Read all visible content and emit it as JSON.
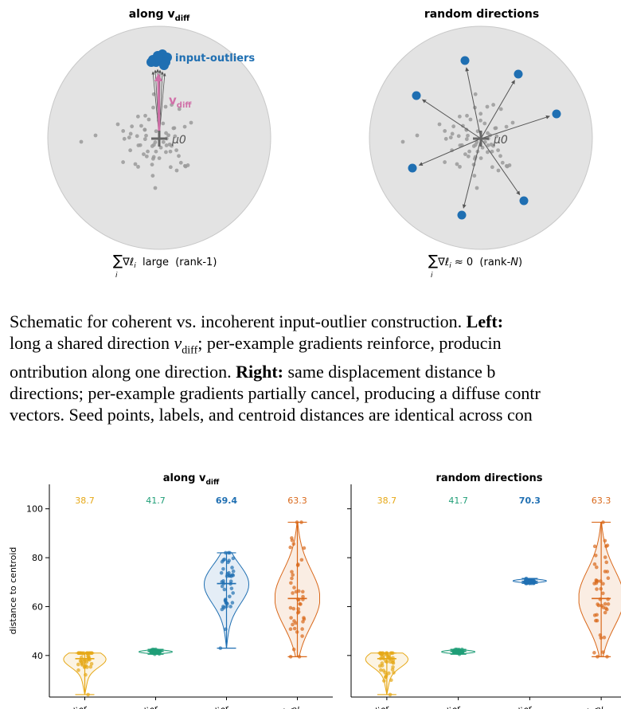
{
  "schematic": {
    "left": {
      "title_main": "along v",
      "title_sub": "diff",
      "outlier_label": "input-outliers",
      "vdiff_main": "v",
      "vdiff_sub": "diff",
      "centroid_label": "μ0",
      "formula_sum": "∑",
      "formula_idx": "i",
      "formula_rest": "∇ℓ",
      "formula_i2": "i",
      "formula_text": "  large  (rank-1)"
    },
    "right": {
      "title": "random directions",
      "centroid_label": "μ0",
      "formula_sum": "∑",
      "formula_idx": "i",
      "formula_rest": "∇ℓ",
      "formula_i2": "i",
      "formula_text": " ≈ 0  (rank-",
      "formula_n": "N",
      "formula_close": ")"
    },
    "colors": {
      "disk": "#e3e3e3",
      "disk_edge": "#c8c8c8",
      "seed": "#9a9a9a",
      "outlier": "#1f6fb2",
      "vdiff": "#d070a8",
      "arrow": "#555555",
      "centroid": "#666666"
    }
  },
  "caption": {
    "line1_a": "Schematic for coherent vs. incoherent input-outlier construction. ",
    "line1_b": "Left:",
    "line2_a": "long a shared direction ",
    "line2_v": "v",
    "line2_sub": "diff",
    "line2_b": "; per-example gradients reinforce, producin",
    "line3_a": "ontribution along one direction. ",
    "line3_b": "Right:",
    "line3_c": " same displacement distance b",
    "line4": "directions; per-example gradients partially cancel, producing a diffuse contr",
    "line5": "vectors. Seed points, labels, and centroid distances are identical across con"
  },
  "chart_data": [
    {
      "type": "violin",
      "title": "along v_diff",
      "title_main": "along v",
      "title_sub": "diff",
      "ylabel": "distance to centroid",
      "ylim": [
        23,
        110
      ],
      "yticks": [
        40,
        60,
        80,
        100
      ],
      "categories": [
        "inlier",
        "output-outlier",
        "input-outlier",
        "boundary"
      ],
      "colors": [
        "#e6a817",
        "#1f9e77",
        "#1f6fb2",
        "#d9681a"
      ],
      "medians": [
        38.7,
        41.7,
        69.4,
        63.3
      ],
      "median_labels": [
        "38.7",
        "41.7",
        "69.4",
        "63.3"
      ],
      "highlight": "input-outlier",
      "ranges": [
        [
          24,
          41
        ],
        [
          40.5,
          42.5
        ],
        [
          43,
          82
        ],
        [
          39.5,
          94.5
        ]
      ]
    },
    {
      "type": "violin",
      "title": "random directions",
      "ylabel": "",
      "ylim": [
        23,
        110
      ],
      "yticks": [
        40,
        60,
        80,
        100
      ],
      "categories": [
        "inlier",
        "output-outlier",
        "input-outlier",
        "boundary"
      ],
      "colors": [
        "#e6a817",
        "#1f9e77",
        "#1f6fb2",
        "#d9681a"
      ],
      "medians": [
        38.7,
        41.7,
        70.3,
        63.3
      ],
      "median_labels": [
        "38.7",
        "41.7",
        "70.3",
        "63.3"
      ],
      "highlight": "input-outlier",
      "ranges": [
        [
          24,
          41
        ],
        [
          40.5,
          42.5
        ],
        [
          69.5,
          71.5
        ],
        [
          39.5,
          94.5
        ]
      ]
    }
  ]
}
